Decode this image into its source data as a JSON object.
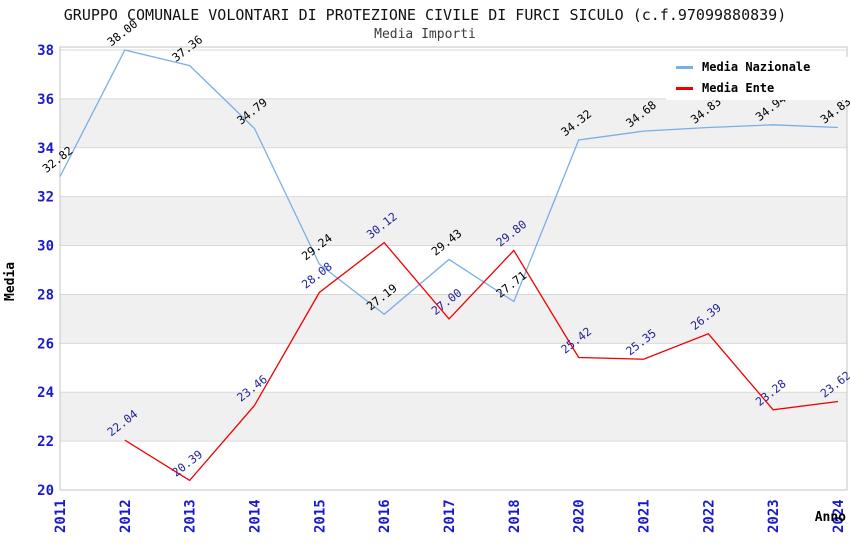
{
  "chart_data": {
    "type": "line",
    "title": "GRUPPO COMUNALE VOLONTARI DI PROTEZIONE CIVILE DI FURCI SICULO (c.f.97099880839)",
    "subtitle": "Media Importi",
    "xlabel": "Anno",
    "ylabel": "Media",
    "x_categories": [
      "2011",
      "2012",
      "2013",
      "2014",
      "2015",
      "2016",
      "2017",
      "2018",
      "2020",
      "2021",
      "2022",
      "2023",
      "2024"
    ],
    "ylim": [
      20,
      38
    ],
    "ytick_step": 2,
    "yticks": [
      20,
      22,
      24,
      26,
      28,
      30,
      32,
      34,
      36,
      38
    ],
    "grid": {
      "horizontal_gridlines": true,
      "alternating_bands": true,
      "band_color": "#f0f0f0",
      "gridline_color": "#d9d9d9",
      "border_color": "#c6c6c6"
    },
    "axis_tick_color": "#1a1acc",
    "legend_position": "top-right",
    "series": [
      {
        "name": "Media Nazionale",
        "color": "#7aaee6",
        "label_color": "#000000",
        "values": [
          32.82,
          38.0,
          37.36,
          34.79,
          29.24,
          27.19,
          29.43,
          27.71,
          34.32,
          34.68,
          34.83,
          34.94,
          34.83
        ],
        "labels": [
          "32.82",
          "38.00",
          "37.36",
          "34.79",
          "29.24",
          "27.19",
          "29.43",
          "27.71",
          "34.32",
          "34.68",
          "34.83",
          "34.94",
          "34.83"
        ]
      },
      {
        "name": "Media Ente",
        "color": "#ee0000",
        "label_color": "#222299",
        "values": [
          null,
          22.04,
          20.39,
          23.46,
          28.08,
          30.12,
          27.0,
          29.8,
          25.42,
          25.35,
          26.39,
          23.28,
          23.62
        ],
        "labels": [
          null,
          "22.04",
          "20.39",
          "23.46",
          "28.08",
          "30.12",
          "27.00",
          "29.80",
          "25.42",
          "25.35",
          "26.39",
          "23.28",
          "23.62"
        ]
      }
    ]
  }
}
